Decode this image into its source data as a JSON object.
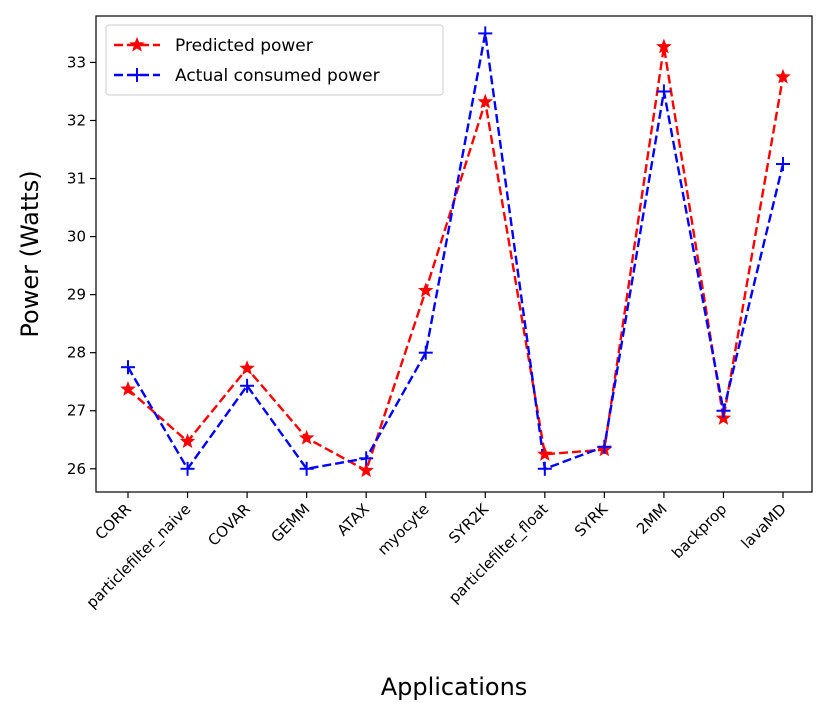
{
  "chart_data": {
    "type": "line",
    "title": "",
    "xlabel": "Applications",
    "ylabel": "Power (Watts)",
    "categories": [
      "CORR",
      "particlefilter_naive",
      "COVAR",
      "GEMM",
      "ATAX",
      "myocyte",
      "SYR2K",
      "particlefilter_float",
      "SYRK",
      "2MM",
      "backprop",
      "lavaMD"
    ],
    "ylim": [
      25.6,
      33.8
    ],
    "yticks": [
      26,
      27,
      28,
      29,
      30,
      31,
      32,
      33
    ],
    "grid": false,
    "legend_position": "top-left",
    "series": [
      {
        "name": "Predicted power",
        "color": "#ff0000",
        "marker": "star",
        "linestyle": "dashed",
        "values": [
          27.37,
          26.47,
          27.73,
          26.53,
          25.97,
          29.07,
          32.32,
          26.25,
          26.33,
          33.27,
          26.87,
          32.75
        ]
      },
      {
        "name": "Actual consumed power",
        "color": "#0000ff",
        "marker": "plus",
        "linestyle": "dashed",
        "values": [
          27.75,
          26.0,
          27.43,
          26.0,
          26.18,
          28.0,
          33.5,
          26.0,
          26.38,
          32.5,
          27.0,
          31.25
        ]
      }
    ]
  }
}
